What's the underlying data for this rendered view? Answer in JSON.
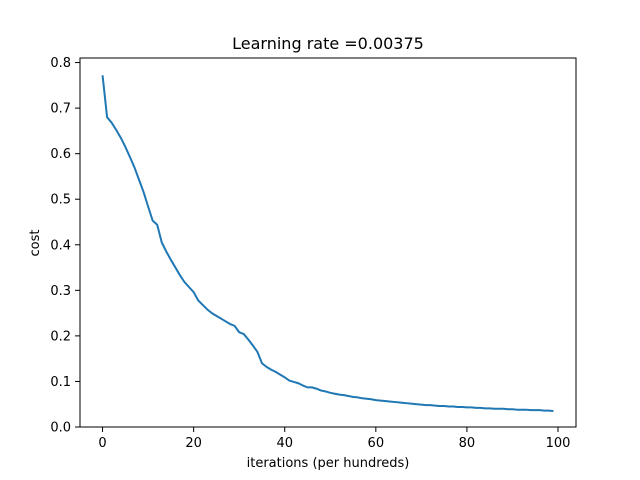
{
  "chart_data": {
    "type": "line",
    "title": "Learning rate =0.00375",
    "xlabel": "iterations (per hundreds)",
    "ylabel": "cost",
    "xlim": [
      -4.95,
      103.95
    ],
    "ylim": [
      0.0,
      0.81
    ],
    "xticks": [
      0,
      20,
      40,
      60,
      80,
      100
    ],
    "yticks": [
      0.0,
      0.1,
      0.2,
      0.3,
      0.4,
      0.5,
      0.6,
      0.7,
      0.8
    ],
    "xtick_labels": [
      "0",
      "20",
      "40",
      "60",
      "80",
      "100"
    ],
    "ytick_labels": [
      "0.0",
      "0.1",
      "0.2",
      "0.3",
      "0.4",
      "0.5",
      "0.6",
      "0.7",
      "0.8"
    ],
    "grid": false,
    "line_color": "#1f77b4",
    "x": [
      0,
      1,
      2,
      3,
      4,
      5,
      6,
      7,
      8,
      9,
      10,
      11,
      12,
      13,
      14,
      15,
      16,
      17,
      18,
      19,
      20,
      21,
      22,
      23,
      24,
      25,
      26,
      27,
      28,
      29,
      30,
      31,
      32,
      33,
      34,
      35,
      36,
      37,
      38,
      39,
      40,
      41,
      42,
      43,
      44,
      45,
      46,
      47,
      48,
      49,
      50,
      51,
      52,
      53,
      54,
      55,
      56,
      57,
      58,
      59,
      60,
      61,
      62,
      63,
      64,
      65,
      66,
      67,
      68,
      69,
      70,
      71,
      72,
      73,
      74,
      75,
      76,
      77,
      78,
      79,
      80,
      81,
      82,
      83,
      84,
      85,
      86,
      87,
      88,
      89,
      90,
      91,
      92,
      93,
      94,
      95,
      96,
      97,
      98,
      99
    ],
    "y": [
      0.772,
      0.68,
      0.668,
      0.652,
      0.635,
      0.615,
      0.593,
      0.57,
      0.543,
      0.516,
      0.484,
      0.453,
      0.444,
      0.405,
      0.385,
      0.367,
      0.35,
      0.333,
      0.318,
      0.307,
      0.296,
      0.278,
      0.268,
      0.258,
      0.25,
      0.244,
      0.238,
      0.232,
      0.226,
      0.222,
      0.208,
      0.204,
      0.192,
      0.179,
      0.165,
      0.14,
      0.132,
      0.126,
      0.121,
      0.115,
      0.109,
      0.102,
      0.099,
      0.096,
      0.091,
      0.087,
      0.087,
      0.084,
      0.08,
      0.078,
      0.075,
      0.073,
      0.071,
      0.07,
      0.068,
      0.066,
      0.065,
      0.063,
      0.062,
      0.061,
      0.059,
      0.058,
      0.057,
      0.056,
      0.055,
      0.054,
      0.053,
      0.052,
      0.051,
      0.05,
      0.049,
      0.048,
      0.048,
      0.047,
      0.046,
      0.046,
      0.045,
      0.045,
      0.044,
      0.044,
      0.043,
      0.043,
      0.042,
      0.042,
      0.041,
      0.041,
      0.04,
      0.04,
      0.04,
      0.039,
      0.039,
      0.038,
      0.038,
      0.038,
      0.037,
      0.037,
      0.037,
      0.036,
      0.036,
      0.035
    ]
  }
}
